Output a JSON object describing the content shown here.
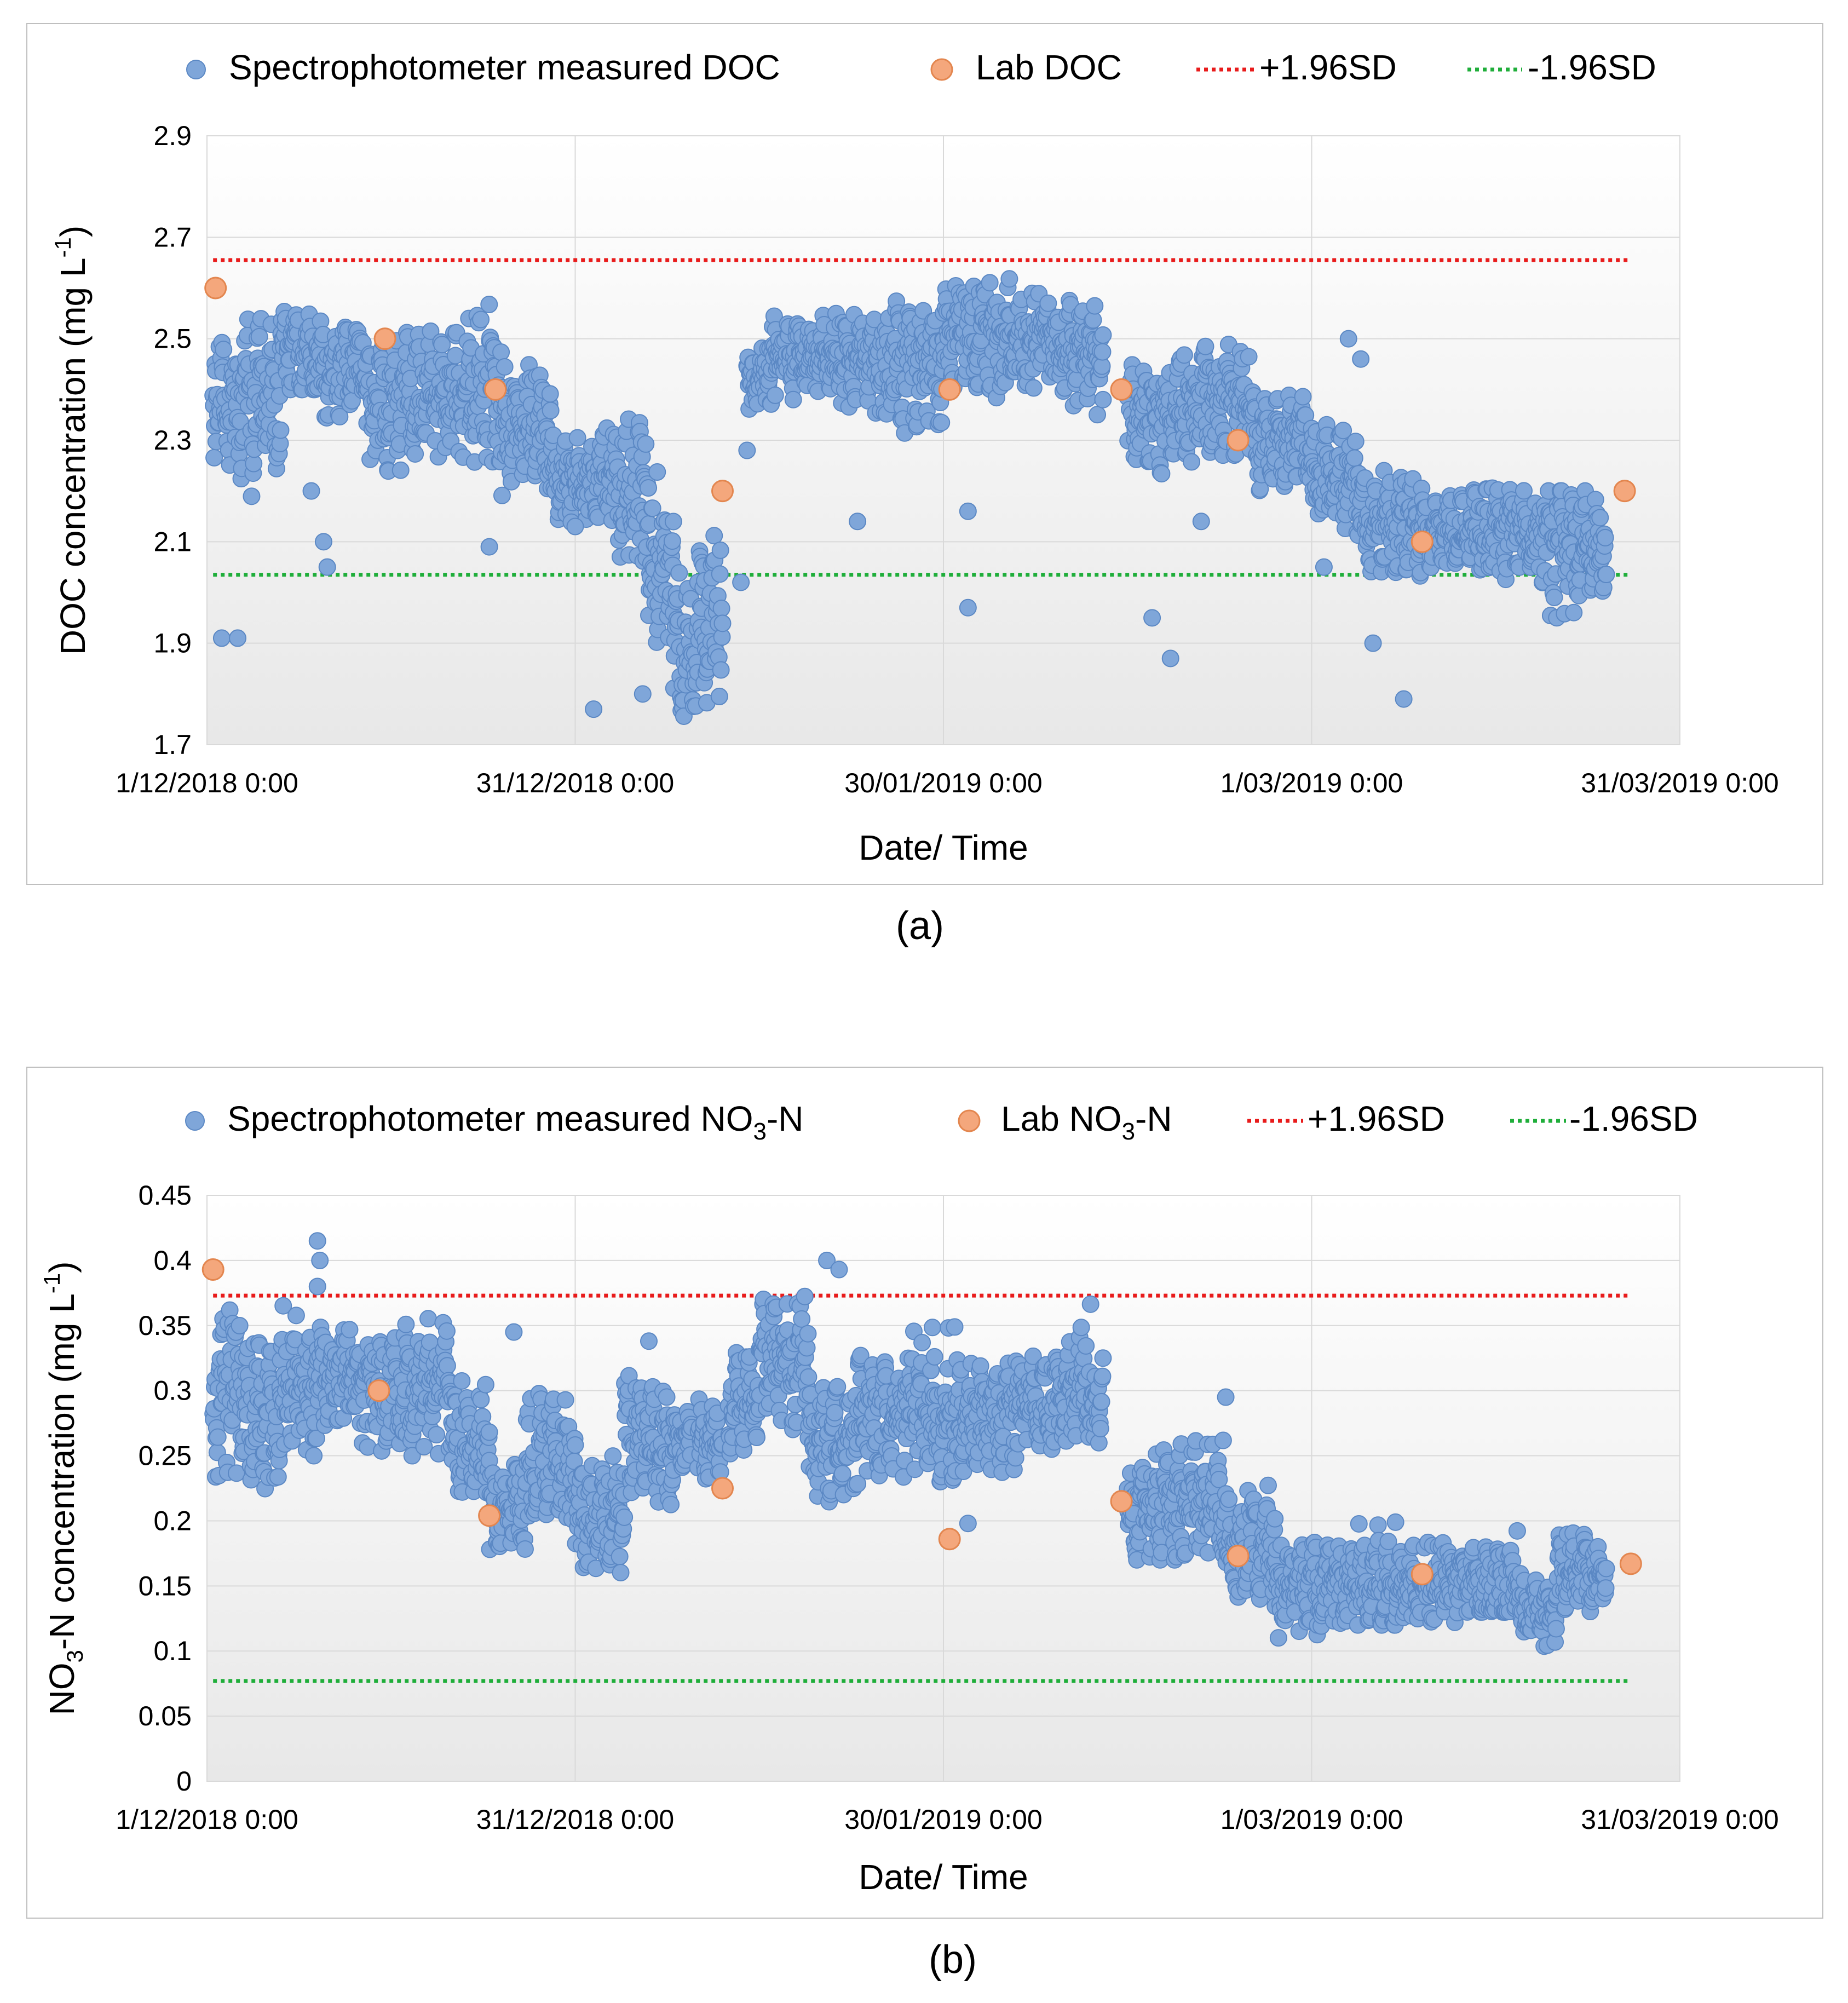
{
  "colors": {
    "spectro": "#7fa6d9",
    "spectro_edge": "#5b88c4",
    "lab": "#f4a77c",
    "lab_edge": "#e3864f",
    "upper_sd": "#e81b1b",
    "lower_sd": "#1fae3a",
    "grid": "#d9d9d9",
    "plot_bg_top": "#ffffff",
    "plot_bg_bottom": "#e8e8e8"
  },
  "chart_data": [
    {
      "id": "a",
      "panel_label": "(a)",
      "type": "scatter",
      "xlabel": "Date/ Time",
      "ylabel_main": "DOC concentration (mg L",
      "ylabel_sup": "-1",
      "ylabel_end": ")",
      "ylim": [
        1.7,
        2.9
      ],
      "yticks": [
        1.7,
        1.9,
        2.1,
        2.3,
        2.5,
        2.7,
        2.9
      ],
      "ytick_labels": [
        "1.7",
        "1.9",
        "2.1",
        "2.3",
        "2.5",
        "2.7",
        "2.9"
      ],
      "xlim_days": [
        0,
        120
      ],
      "xticks_days": [
        0,
        30,
        60,
        90,
        120
      ],
      "xtick_labels": [
        "1/12/2018 0:00",
        "31/12/2018 0:00",
        "30/01/2019 0:00",
        "1/03/2019 0:00",
        "31/03/2019 0:00"
      ],
      "legend": {
        "spectro": "Spectrophotometer measured DOC",
        "lab_main": "Lab DOC",
        "upper": "+1.96SD",
        "lower": "-1.96SD"
      },
      "upper_sd": 2.655,
      "lower_sd": 2.035,
      "sd_x_range_days": [
        0.5,
        116
      ],
      "lab_points": [
        {
          "x": 0.7,
          "y": 2.6
        },
        {
          "x": 14.5,
          "y": 2.5
        },
        {
          "x": 23.5,
          "y": 2.4
        },
        {
          "x": 42.0,
          "y": 2.2
        },
        {
          "x": 60.5,
          "y": 2.4
        },
        {
          "x": 74.5,
          "y": 2.4
        },
        {
          "x": 84.0,
          "y": 2.3
        },
        {
          "x": 99.0,
          "y": 2.1
        },
        {
          "x": 115.5,
          "y": 2.2
        }
      ],
      "spectro_segments": [
        {
          "x": [
            0.5,
            3.0
          ],
          "lo": 2.22,
          "hi": 2.53,
          "base": 2.36
        },
        {
          "x": [
            3.0,
            6.0
          ],
          "lo": 2.15,
          "hi": 2.55,
          "base": 2.4
        },
        {
          "x": [
            6.0,
            9.0
          ],
          "lo": 2.4,
          "hi": 2.6,
          "base": 2.48
        },
        {
          "x": [
            9.0,
            13.0
          ],
          "lo": 2.33,
          "hi": 2.55,
          "base": 2.44
        },
        {
          "x": [
            13.0,
            17.0
          ],
          "lo": 2.22,
          "hi": 2.53,
          "base": 2.38
        },
        {
          "x": [
            17.0,
            21.0
          ],
          "lo": 2.25,
          "hi": 2.52,
          "base": 2.4
        },
        {
          "x": [
            21.0,
            24.0
          ],
          "lo": 2.24,
          "hi": 2.57,
          "base": 2.4
        },
        {
          "x": [
            24.0,
            28.0
          ],
          "lo": 2.18,
          "hi": 2.45,
          "base": 2.33
        },
        {
          "x": [
            28.0,
            33.0
          ],
          "lo": 2.12,
          "hi": 2.33,
          "base": 2.22
        },
        {
          "x": [
            33.0,
            36.0
          ],
          "lo": 2.05,
          "hi": 2.35,
          "base": 2.2
        },
        {
          "x": [
            36.0,
            38.0
          ],
          "lo": 1.85,
          "hi": 2.25,
          "base": 2.05
        },
        {
          "x": [
            38.0,
            40.0
          ],
          "lo": 1.74,
          "hi": 2.05,
          "base": 1.88
        },
        {
          "x": [
            40.0,
            42.0
          ],
          "lo": 1.77,
          "hi": 2.15,
          "base": 1.95
        },
        {
          "x": [
            44.0,
            46.0
          ],
          "lo": 2.35,
          "hi": 2.49,
          "base": 2.42
        },
        {
          "x": [
            46.0,
            51.0
          ],
          "lo": 2.38,
          "hi": 2.55,
          "base": 2.47
        },
        {
          "x": [
            51.0,
            56.0
          ],
          "lo": 2.35,
          "hi": 2.56,
          "base": 2.46
        },
        {
          "x": [
            56.0,
            60.0
          ],
          "lo": 2.3,
          "hi": 2.6,
          "base": 2.45
        },
        {
          "x": [
            60.0,
            66.0
          ],
          "lo": 2.38,
          "hi": 2.62,
          "base": 2.5
        },
        {
          "x": [
            66.0,
            69.0
          ],
          "lo": 2.4,
          "hi": 2.61,
          "base": 2.5
        },
        {
          "x": [
            69.0,
            73.0
          ],
          "lo": 2.35,
          "hi": 2.58,
          "base": 2.48
        },
        {
          "x": [
            75.0,
            80.0
          ],
          "lo": 2.22,
          "hi": 2.48,
          "base": 2.35
        },
        {
          "x": [
            80.0,
            85.0
          ],
          "lo": 2.25,
          "hi": 2.5,
          "base": 2.38
        },
        {
          "x": [
            85.0,
            90.0
          ],
          "lo": 2.2,
          "hi": 2.42,
          "base": 2.3
        },
        {
          "x": [
            90.0,
            94.0
          ],
          "lo": 2.1,
          "hi": 2.35,
          "base": 2.22
        },
        {
          "x": [
            94.0,
            99.0
          ],
          "lo": 2.02,
          "hi": 2.25,
          "base": 2.13
        },
        {
          "x": [
            99.0,
            103.0
          ],
          "lo": 2.04,
          "hi": 2.2,
          "base": 2.12
        },
        {
          "x": [
            103.0,
            108.0
          ],
          "lo": 2.02,
          "hi": 2.22,
          "base": 2.12
        },
        {
          "x": [
            108.0,
            114.0
          ],
          "lo": 1.95,
          "hi": 2.2,
          "base": 2.1
        }
      ],
      "spectro_outliers": [
        {
          "x": 1.2,
          "y": 1.91
        },
        {
          "x": 2.5,
          "y": 1.91
        },
        {
          "x": 8.5,
          "y": 2.2
        },
        {
          "x": 9.5,
          "y": 2.1
        },
        {
          "x": 9.8,
          "y": 2.05
        },
        {
          "x": 23.0,
          "y": 2.09
        },
        {
          "x": 30.0,
          "y": 2.13
        },
        {
          "x": 31.5,
          "y": 1.77
        },
        {
          "x": 35.5,
          "y": 1.8
        },
        {
          "x": 43.5,
          "y": 2.02
        },
        {
          "x": 44.0,
          "y": 2.28
        },
        {
          "x": 53.0,
          "y": 2.14
        },
        {
          "x": 62.0,
          "y": 2.16
        },
        {
          "x": 62.0,
          "y": 1.97
        },
        {
          "x": 73.0,
          "y": 2.38
        },
        {
          "x": 77.0,
          "y": 1.95
        },
        {
          "x": 78.5,
          "y": 1.87
        },
        {
          "x": 81.0,
          "y": 2.14
        },
        {
          "x": 91.0,
          "y": 2.05
        },
        {
          "x": 93.0,
          "y": 2.5
        },
        {
          "x": 95.0,
          "y": 1.9
        },
        {
          "x": 97.5,
          "y": 1.79
        },
        {
          "x": 94.0,
          "y": 2.46
        }
      ]
    },
    {
      "id": "b",
      "panel_label": "(b)",
      "type": "scatter",
      "xlabel": "Date/ Time",
      "ylabel_main": "NO",
      "ylabel_sub": "3",
      "ylabel_mid": "-N concentration (mg L",
      "ylabel_sup": "-1",
      "ylabel_end": ")",
      "ylim": [
        0,
        0.45
      ],
      "yticks": [
        0,
        0.05,
        0.1,
        0.15,
        0.2,
        0.25,
        0.3,
        0.35,
        0.4,
        0.45
      ],
      "ytick_labels": [
        "0",
        "0.05",
        "0.1",
        "0.15",
        "0.2",
        "0.25",
        "0.3",
        "0.35",
        "0.4",
        "0.45"
      ],
      "xlim_days": [
        0,
        120
      ],
      "xticks_days": [
        0,
        30,
        60,
        90,
        120
      ],
      "xtick_labels": [
        "1/12/2018 0:00",
        "31/12/2018 0:00",
        "30/01/2019 0:00",
        "1/03/2019 0:00",
        "31/03/2019 0:00"
      ],
      "legend": {
        "spectro_main": "Spectrophotometer measured NO",
        "spectro_sub": "3",
        "spectro_end": "-N",
        "lab_main": "Lab NO",
        "lab_sub": "3",
        "lab_end": "-N",
        "upper": "+1.96SD",
        "lower": "-1.96SD"
      },
      "upper_sd": 0.373,
      "lower_sd": 0.077,
      "sd_x_range_days": [
        0.5,
        116
      ],
      "lab_points": [
        {
          "x": 0.5,
          "y": 0.393
        },
        {
          "x": 14.0,
          "y": 0.3
        },
        {
          "x": 23.0,
          "y": 0.204
        },
        {
          "x": 42.0,
          "y": 0.225
        },
        {
          "x": 60.5,
          "y": 0.186
        },
        {
          "x": 74.5,
          "y": 0.215
        },
        {
          "x": 84.0,
          "y": 0.173
        },
        {
          "x": 99.0,
          "y": 0.159
        },
        {
          "x": 116.0,
          "y": 0.167
        }
      ],
      "spectro_segments": [
        {
          "x": [
            0.5,
            3.0
          ],
          "lo": 0.22,
          "hi": 0.37,
          "base": 0.3
        },
        {
          "x": [
            3.0,
            6.0
          ],
          "lo": 0.21,
          "hi": 0.34,
          "base": 0.28
        },
        {
          "x": [
            6.0,
            9.0
          ],
          "lo": 0.25,
          "hi": 0.37,
          "base": 0.3
        },
        {
          "x": [
            9.0,
            12.0
          ],
          "lo": 0.27,
          "hi": 0.37,
          "base": 0.31
        },
        {
          "x": [
            12.0,
            16.0
          ],
          "lo": 0.25,
          "hi": 0.35,
          "base": 0.3
        },
        {
          "x": [
            16.0,
            20.0
          ],
          "lo": 0.25,
          "hi": 0.37,
          "base": 0.3
        },
        {
          "x": [
            20.0,
            23.0
          ],
          "lo": 0.22,
          "hi": 0.31,
          "base": 0.26
        },
        {
          "x": [
            23.0,
            26.0
          ],
          "lo": 0.17,
          "hi": 0.25,
          "base": 0.21
        },
        {
          "x": [
            26.0,
            30.0
          ],
          "lo": 0.2,
          "hi": 0.31,
          "base": 0.25
        },
        {
          "x": [
            30.0,
            34.0
          ],
          "lo": 0.16,
          "hi": 0.25,
          "base": 0.2
        },
        {
          "x": [
            34.0,
            38.0
          ],
          "lo": 0.2,
          "hi": 0.32,
          "base": 0.26
        },
        {
          "x": [
            38.0,
            39.5
          ],
          "lo": 0.23,
          "hi": 0.29,
          "base": 0.26
        },
        {
          "x": [
            40.0,
            42.0
          ],
          "lo": 0.23,
          "hi": 0.3,
          "base": 0.26
        },
        {
          "x": [
            42.5,
            45.0
          ],
          "lo": 0.25,
          "hi": 0.33,
          "base": 0.29
        },
        {
          "x": [
            45.0,
            49.0
          ],
          "lo": 0.26,
          "hi": 0.38,
          "base": 0.32
        },
        {
          "x": [
            49.0,
            53.0
          ],
          "lo": 0.21,
          "hi": 0.31,
          "base": 0.26
        },
        {
          "x": [
            53.0,
            57.0
          ],
          "lo": 0.23,
          "hi": 0.34,
          "base": 0.28
        },
        {
          "x": [
            57.0,
            61.0
          ],
          "lo": 0.23,
          "hi": 0.35,
          "base": 0.28
        },
        {
          "x": [
            61.0,
            66.0
          ],
          "lo": 0.23,
          "hi": 0.34,
          "base": 0.28
        },
        {
          "x": [
            66.0,
            70.0
          ],
          "lo": 0.25,
          "hi": 0.33,
          "base": 0.29
        },
        {
          "x": [
            70.0,
            73.0
          ],
          "lo": 0.26,
          "hi": 0.37,
          "base": 0.3
        },
        {
          "x": [
            75.0,
            79.0
          ],
          "lo": 0.17,
          "hi": 0.27,
          "base": 0.21
        },
        {
          "x": [
            79.0,
            83.0
          ],
          "lo": 0.17,
          "hi": 0.27,
          "base": 0.21
        },
        {
          "x": [
            83.0,
            87.0
          ],
          "lo": 0.14,
          "hi": 0.23,
          "base": 0.18
        },
        {
          "x": [
            87.0,
            92.0
          ],
          "lo": 0.11,
          "hi": 0.19,
          "base": 0.15
        },
        {
          "x": [
            92.0,
            97.0
          ],
          "lo": 0.12,
          "hi": 0.2,
          "base": 0.15
        },
        {
          "x": [
            97.0,
            102.0
          ],
          "lo": 0.12,
          "hi": 0.19,
          "base": 0.15
        },
        {
          "x": [
            102.0,
            107.0
          ],
          "lo": 0.13,
          "hi": 0.2,
          "base": 0.15
        },
        {
          "x": [
            107.0,
            110.0
          ],
          "lo": 0.1,
          "hi": 0.16,
          "base": 0.13
        },
        {
          "x": [
            110.0,
            114.0
          ],
          "lo": 0.13,
          "hi": 0.2,
          "base": 0.16
        }
      ],
      "spectro_outliers": [
        {
          "x": 9.0,
          "y": 0.415
        },
        {
          "x": 9.2,
          "y": 0.4
        },
        {
          "x": 9.0,
          "y": 0.38
        },
        {
          "x": 25.0,
          "y": 0.345
        },
        {
          "x": 36.0,
          "y": 0.338
        },
        {
          "x": 50.5,
          "y": 0.4
        },
        {
          "x": 51.5,
          "y": 0.393
        },
        {
          "x": 62.0,
          "y": 0.198
        },
        {
          "x": 83.0,
          "y": 0.295
        }
      ]
    }
  ]
}
